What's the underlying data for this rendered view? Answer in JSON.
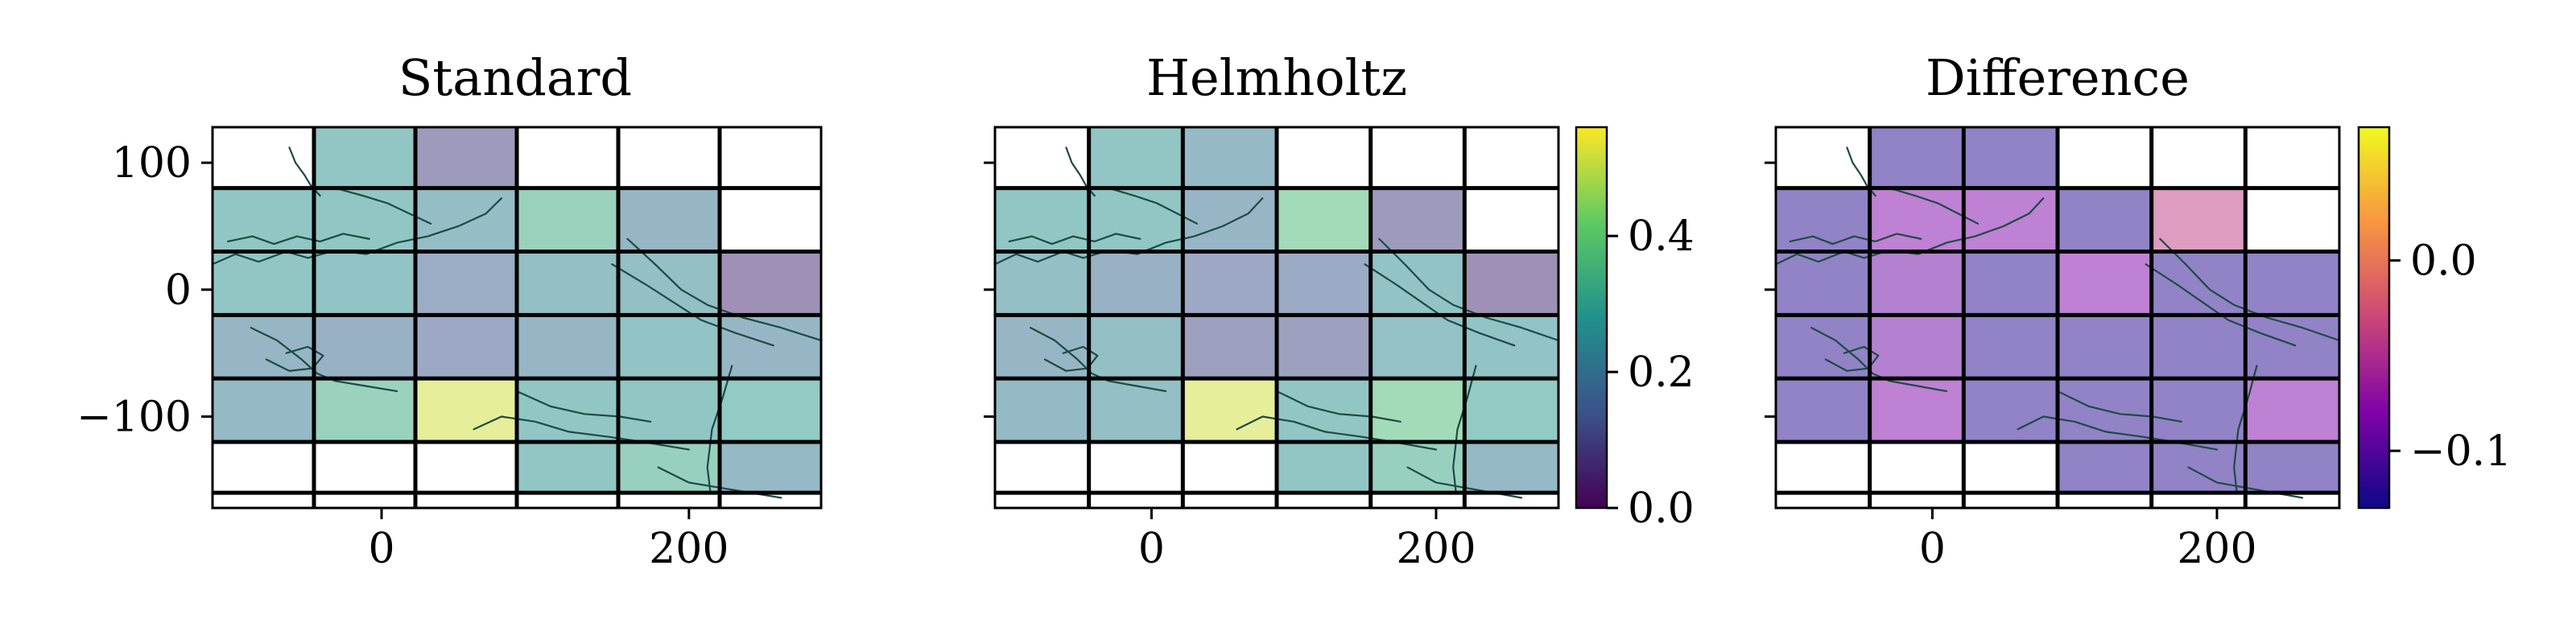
{
  "chart_data": [
    {
      "type": "heatmap",
      "title": "Standard",
      "xlabel": "",
      "ylabel": "",
      "x_edges": [
        -110,
        -44,
        22,
        88,
        154,
        220,
        286
      ],
      "y_edges": [
        -160,
        -120,
        -70,
        -20,
        30,
        80,
        130
      ],
      "xlim": [
        -110,
        286
      ],
      "ylim": [
        -172,
        128
      ],
      "xticks": [
        0,
        200
      ],
      "xtick_labels": [
        "0",
        "200"
      ],
      "yticks": [
        100,
        0,
        -100
      ],
      "ytick_labels": [
        "100",
        "0",
        "−100"
      ],
      "show_ytick_labels": true,
      "cmap": "viridis",
      "vmin": 0.0,
      "vmax": 0.56,
      "cell_alpha": 0.5,
      "values": [
        [
          null,
          null,
          null,
          0.27,
          0.32,
          0.22
        ],
        [
          0.22,
          0.33,
          0.52,
          0.27,
          0.27,
          0.29
        ],
        [
          0.2,
          0.18,
          0.14,
          0.2,
          0.26,
          0.2
        ],
        [
          0.27,
          0.26,
          0.16,
          0.24,
          0.24,
          0.06
        ],
        [
          0.27,
          0.27,
          0.23,
          0.33,
          0.2,
          null
        ],
        [
          null,
          0.27,
          0.09,
          null,
          null,
          null
        ]
      ],
      "colorbar": null
    },
    {
      "type": "heatmap",
      "title": "Helmholtz",
      "xlabel": "",
      "ylabel": "",
      "x_edges": [
        -110,
        -44,
        22,
        88,
        154,
        220,
        286
      ],
      "y_edges": [
        -160,
        -120,
        -70,
        -20,
        30,
        80,
        130
      ],
      "xlim": [
        -110,
        286
      ],
      "ylim": [
        -172,
        128
      ],
      "xticks": [
        0,
        200
      ],
      "xtick_labels": [
        "0",
        "200"
      ],
      "yticks": [
        100,
        0,
        -100
      ],
      "ytick_labels": [
        "",
        "",
        ""
      ],
      "show_ytick_labels": false,
      "cmap": "viridis",
      "vmin": 0.0,
      "vmax": 0.56,
      "cell_alpha": 0.5,
      "values": [
        [
          null,
          null,
          null,
          0.27,
          0.32,
          0.22
        ],
        [
          0.22,
          0.24,
          0.52,
          0.27,
          0.37,
          0.29
        ],
        [
          0.2,
          0.24,
          0.11,
          0.11,
          0.25,
          0.26
        ],
        [
          0.24,
          0.18,
          0.14,
          0.15,
          0.26,
          0.06
        ],
        [
          0.27,
          0.27,
          0.2,
          0.37,
          0.09,
          null
        ],
        [
          null,
          0.27,
          0.22,
          null,
          null,
          null
        ]
      ],
      "colorbar": {
        "cmap": "viridis",
        "vmin": 0.0,
        "vmax": 0.56,
        "ticks": [
          0.0,
          0.2,
          0.4
        ],
        "tick_labels": [
          "0.0",
          "0.2",
          "0.4"
        ]
      }
    },
    {
      "type": "heatmap",
      "title": "Difference",
      "xlabel": "",
      "ylabel": "",
      "x_edges": [
        -110,
        -44,
        22,
        88,
        154,
        220,
        286
      ],
      "y_edges": [
        -160,
        -120,
        -70,
        -20,
        30,
        80,
        130
      ],
      "xlim": [
        -110,
        286
      ],
      "ylim": [
        -172,
        128
      ],
      "xticks": [
        0,
        200
      ],
      "xtick_labels": [
        "0",
        "200"
      ],
      "yticks": [
        100,
        0,
        -100
      ],
      "ytick_labels": [
        "",
        "",
        ""
      ],
      "show_ytick_labels": false,
      "cmap": "plasma",
      "vmin": -0.13,
      "vmax": 0.07,
      "cell_alpha": 0.5,
      "values": [
        [
          null,
          null,
          null,
          -0.12,
          -0.12,
          -0.12
        ],
        [
          -0.12,
          -0.08,
          -0.12,
          -0.12,
          -0.12,
          -0.08
        ],
        [
          -0.12,
          -0.09,
          -0.12,
          -0.12,
          -0.12,
          -0.12
        ],
        [
          -0.12,
          -0.09,
          -0.12,
          -0.08,
          -0.12,
          -0.12
        ],
        [
          -0.12,
          -0.08,
          -0.08,
          -0.12,
          -0.04,
          null
        ],
        [
          null,
          -0.12,
          -0.12,
          null,
          null,
          null
        ]
      ],
      "colorbar": {
        "cmap": "plasma",
        "vmin": -0.13,
        "vmax": 0.07,
        "ticks": [
          0.0,
          -0.1
        ],
        "tick_labels": [
          "0.0",
          "−0.1"
        ]
      }
    }
  ]
}
